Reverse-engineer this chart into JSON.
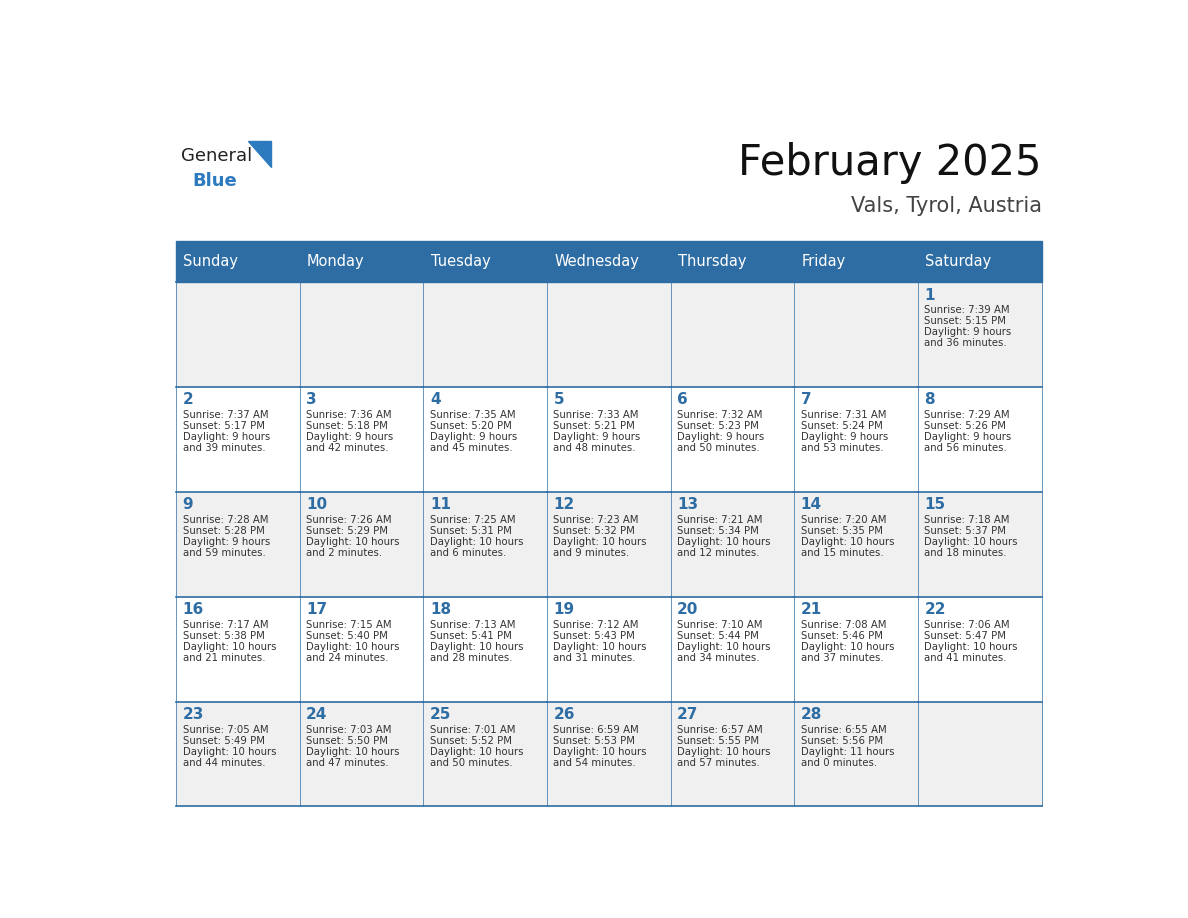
{
  "title": "February 2025",
  "subtitle": "Vals, Tyrol, Austria",
  "days_of_week": [
    "Sunday",
    "Monday",
    "Tuesday",
    "Wednesday",
    "Thursday",
    "Friday",
    "Saturday"
  ],
  "header_bg": "#2E6DA4",
  "header_text_color": "#FFFFFF",
  "cell_bg_light": "#F0F0F0",
  "cell_bg_white": "#FFFFFF",
  "border_color": "#2E6DA4",
  "text_color_dark": "#333333",
  "text_color_number": "#2E6DA4",
  "logo_general_color": "#222222",
  "logo_blue_color": "#2E7ABF",
  "logo_triangle_color": "#2E7ABF",
  "weeks": [
    [
      {
        "day": null,
        "info": null
      },
      {
        "day": null,
        "info": null
      },
      {
        "day": null,
        "info": null
      },
      {
        "day": null,
        "info": null
      },
      {
        "day": null,
        "info": null
      },
      {
        "day": null,
        "info": null
      },
      {
        "day": 1,
        "info": "Sunrise: 7:39 AM\nSunset: 5:15 PM\nDaylight: 9 hours\nand 36 minutes."
      }
    ],
    [
      {
        "day": 2,
        "info": "Sunrise: 7:37 AM\nSunset: 5:17 PM\nDaylight: 9 hours\nand 39 minutes."
      },
      {
        "day": 3,
        "info": "Sunrise: 7:36 AM\nSunset: 5:18 PM\nDaylight: 9 hours\nand 42 minutes."
      },
      {
        "day": 4,
        "info": "Sunrise: 7:35 AM\nSunset: 5:20 PM\nDaylight: 9 hours\nand 45 minutes."
      },
      {
        "day": 5,
        "info": "Sunrise: 7:33 AM\nSunset: 5:21 PM\nDaylight: 9 hours\nand 48 minutes."
      },
      {
        "day": 6,
        "info": "Sunrise: 7:32 AM\nSunset: 5:23 PM\nDaylight: 9 hours\nand 50 minutes."
      },
      {
        "day": 7,
        "info": "Sunrise: 7:31 AM\nSunset: 5:24 PM\nDaylight: 9 hours\nand 53 minutes."
      },
      {
        "day": 8,
        "info": "Sunrise: 7:29 AM\nSunset: 5:26 PM\nDaylight: 9 hours\nand 56 minutes."
      }
    ],
    [
      {
        "day": 9,
        "info": "Sunrise: 7:28 AM\nSunset: 5:28 PM\nDaylight: 9 hours\nand 59 minutes."
      },
      {
        "day": 10,
        "info": "Sunrise: 7:26 AM\nSunset: 5:29 PM\nDaylight: 10 hours\nand 2 minutes."
      },
      {
        "day": 11,
        "info": "Sunrise: 7:25 AM\nSunset: 5:31 PM\nDaylight: 10 hours\nand 6 minutes."
      },
      {
        "day": 12,
        "info": "Sunrise: 7:23 AM\nSunset: 5:32 PM\nDaylight: 10 hours\nand 9 minutes."
      },
      {
        "day": 13,
        "info": "Sunrise: 7:21 AM\nSunset: 5:34 PM\nDaylight: 10 hours\nand 12 minutes."
      },
      {
        "day": 14,
        "info": "Sunrise: 7:20 AM\nSunset: 5:35 PM\nDaylight: 10 hours\nand 15 minutes."
      },
      {
        "day": 15,
        "info": "Sunrise: 7:18 AM\nSunset: 5:37 PM\nDaylight: 10 hours\nand 18 minutes."
      }
    ],
    [
      {
        "day": 16,
        "info": "Sunrise: 7:17 AM\nSunset: 5:38 PM\nDaylight: 10 hours\nand 21 minutes."
      },
      {
        "day": 17,
        "info": "Sunrise: 7:15 AM\nSunset: 5:40 PM\nDaylight: 10 hours\nand 24 minutes."
      },
      {
        "day": 18,
        "info": "Sunrise: 7:13 AM\nSunset: 5:41 PM\nDaylight: 10 hours\nand 28 minutes."
      },
      {
        "day": 19,
        "info": "Sunrise: 7:12 AM\nSunset: 5:43 PM\nDaylight: 10 hours\nand 31 minutes."
      },
      {
        "day": 20,
        "info": "Sunrise: 7:10 AM\nSunset: 5:44 PM\nDaylight: 10 hours\nand 34 minutes."
      },
      {
        "day": 21,
        "info": "Sunrise: 7:08 AM\nSunset: 5:46 PM\nDaylight: 10 hours\nand 37 minutes."
      },
      {
        "day": 22,
        "info": "Sunrise: 7:06 AM\nSunset: 5:47 PM\nDaylight: 10 hours\nand 41 minutes."
      }
    ],
    [
      {
        "day": 23,
        "info": "Sunrise: 7:05 AM\nSunset: 5:49 PM\nDaylight: 10 hours\nand 44 minutes."
      },
      {
        "day": 24,
        "info": "Sunrise: 7:03 AM\nSunset: 5:50 PM\nDaylight: 10 hours\nand 47 minutes."
      },
      {
        "day": 25,
        "info": "Sunrise: 7:01 AM\nSunset: 5:52 PM\nDaylight: 10 hours\nand 50 minutes."
      },
      {
        "day": 26,
        "info": "Sunrise: 6:59 AM\nSunset: 5:53 PM\nDaylight: 10 hours\nand 54 minutes."
      },
      {
        "day": 27,
        "info": "Sunrise: 6:57 AM\nSunset: 5:55 PM\nDaylight: 10 hours\nand 57 minutes."
      },
      {
        "day": 28,
        "info": "Sunrise: 6:55 AM\nSunset: 5:56 PM\nDaylight: 11 hours\nand 0 minutes."
      },
      {
        "day": null,
        "info": null
      }
    ]
  ]
}
